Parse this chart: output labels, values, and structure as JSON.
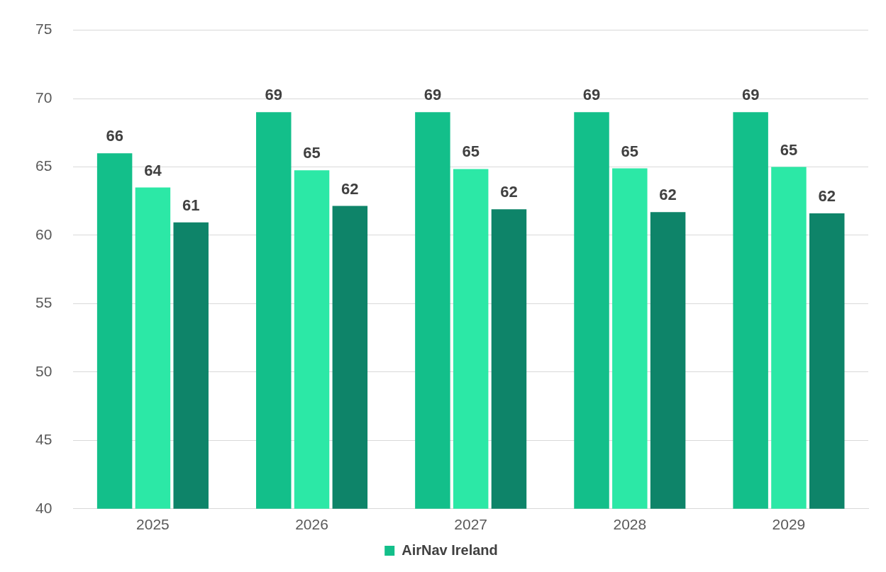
{
  "chart_data": {
    "type": "bar",
    "categories": [
      "2025",
      "2026",
      "2027",
      "2028",
      "2029"
    ],
    "series": [
      {
        "name": "AirNav Ireland",
        "color": "#13bf8a",
        "values": [
          66,
          69,
          69,
          69,
          69
        ],
        "value_labels": [
          "66",
          "69",
          "69",
          "69",
          "69"
        ]
      },
      {
        "color": "#2ce8a6",
        "values": [
          63.5,
          64.75,
          64.85,
          64.9,
          65.0
        ],
        "value_labels": [
          "64",
          "65",
          "65",
          "65",
          "65"
        ]
      },
      {
        "color": "#0e8469",
        "values": [
          60.95,
          62.15,
          61.9,
          61.7,
          61.6
        ],
        "value_labels": [
          "61",
          "62",
          "62",
          "62",
          "62"
        ]
      }
    ],
    "ylim": [
      40,
      75
    ],
    "yticks": [
      40,
      45,
      50,
      55,
      60,
      65,
      70,
      75
    ],
    "grid": "y",
    "legend": "bottom"
  }
}
